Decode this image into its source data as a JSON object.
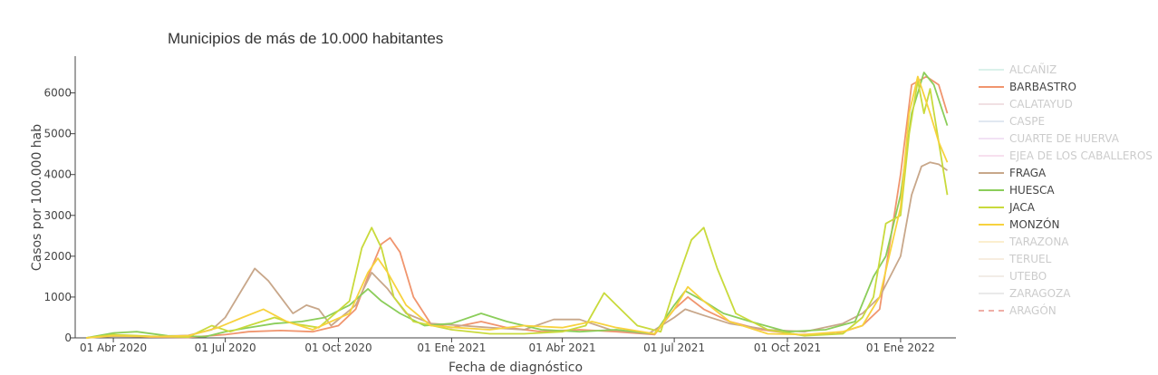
{
  "chart_data": {
    "type": "line",
    "title": "Municipios de más de 10.000 habitantes",
    "xlabel": "Fecha de diagnóstico",
    "ylabel": "Casos por 100.000 hab",
    "xlim": [
      "2020-03-01",
      "2022-02-15"
    ],
    "ylim": [
      0,
      6900
    ],
    "yticks": [
      0,
      1000,
      2000,
      3000,
      4000,
      5000,
      6000
    ],
    "xticks": [
      {
        "date": "2020-04-01",
        "label": "01 Abr 2020"
      },
      {
        "date": "2020-07-01",
        "label": "01 Jul 2020"
      },
      {
        "date": "2020-10-01",
        "label": "01 Oct 2020"
      },
      {
        "date": "2021-01-01",
        "label": "01 Ene 2021"
      },
      {
        "date": "2021-04-01",
        "label": "01 Abr 2021"
      },
      {
        "date": "2021-07-01",
        "label": "01 Jul 2021"
      },
      {
        "date": "2021-10-01",
        "label": "01 Oct 2021"
      },
      {
        "date": "2022-01-01",
        "label": "01 Ene 2022"
      }
    ],
    "legend_position": "right",
    "series": [
      {
        "name": "ALCAÑIZ",
        "color": "#b7e4d9",
        "visible": false,
        "dash": "solid",
        "points": []
      },
      {
        "name": "BARBASTRO",
        "color": "#f0956e",
        "visible": true,
        "dash": "solid",
        "points": [
          [
            "2020-03-10",
            0
          ],
          [
            "2020-04-01",
            60
          ],
          [
            "2020-05-01",
            20
          ],
          [
            "2020-06-01",
            10
          ],
          [
            "2020-07-01",
            80
          ],
          [
            "2020-07-20",
            150
          ],
          [
            "2020-08-15",
            180
          ],
          [
            "2020-09-10",
            150
          ],
          [
            "2020-10-01",
            300
          ],
          [
            "2020-10-15",
            700
          ],
          [
            "2020-10-25",
            1500
          ],
          [
            "2020-11-05",
            2300
          ],
          [
            "2020-11-12",
            2450
          ],
          [
            "2020-11-20",
            2100
          ],
          [
            "2020-12-01",
            1000
          ],
          [
            "2020-12-15",
            350
          ],
          [
            "2021-01-01",
            250
          ],
          [
            "2021-01-25",
            400
          ],
          [
            "2021-02-15",
            250
          ],
          [
            "2021-03-15",
            150
          ],
          [
            "2021-04-15",
            200
          ],
          [
            "2021-05-15",
            150
          ],
          [
            "2021-06-15",
            80
          ],
          [
            "2021-07-01",
            700
          ],
          [
            "2021-07-12",
            1000
          ],
          [
            "2021-07-25",
            700
          ],
          [
            "2021-08-15",
            400
          ],
          [
            "2021-09-10",
            200
          ],
          [
            "2021-10-10",
            80
          ],
          [
            "2021-11-10",
            100
          ],
          [
            "2021-12-01",
            300
          ],
          [
            "2021-12-15",
            700
          ],
          [
            "2022-01-01",
            4000
          ],
          [
            "2022-01-10",
            6200
          ],
          [
            "2022-01-22",
            6400
          ],
          [
            "2022-02-01",
            6200
          ],
          [
            "2022-02-08",
            5500
          ]
        ]
      },
      {
        "name": "CALATAYUD",
        "color": "#e4c2c9",
        "visible": false,
        "dash": "solid",
        "points": []
      },
      {
        "name": "CASPE",
        "color": "#c4d3e4",
        "visible": false,
        "dash": "solid",
        "points": []
      },
      {
        "name": "CUARTE DE HUERVA",
        "color": "#e6c6ea",
        "visible": false,
        "dash": "solid",
        "points": []
      },
      {
        "name": "EJEA DE LOS CABALLEROS",
        "color": "#f0c2de",
        "visible": false,
        "dash": "solid",
        "points": []
      },
      {
        "name": "FRAGA",
        "color": "#c8a78a",
        "visible": true,
        "dash": "solid",
        "points": [
          [
            "2020-03-10",
            0
          ],
          [
            "2020-04-01",
            40
          ],
          [
            "2020-05-01",
            30
          ],
          [
            "2020-06-01",
            60
          ],
          [
            "2020-06-20",
            200
          ],
          [
            "2020-07-01",
            500
          ],
          [
            "2020-07-15",
            1200
          ],
          [
            "2020-07-25",
            1700
          ],
          [
            "2020-08-05",
            1400
          ],
          [
            "2020-08-15",
            1000
          ],
          [
            "2020-08-25",
            600
          ],
          [
            "2020-09-05",
            800
          ],
          [
            "2020-09-15",
            700
          ],
          [
            "2020-09-25",
            300
          ],
          [
            "2020-10-15",
            800
          ],
          [
            "2020-10-28",
            1600
          ],
          [
            "2020-11-10",
            1200
          ],
          [
            "2020-11-25",
            600
          ],
          [
            "2020-12-15",
            350
          ],
          [
            "2021-01-10",
            300
          ],
          [
            "2021-02-01",
            250
          ],
          [
            "2021-03-01",
            200
          ],
          [
            "2021-03-25",
            450
          ],
          [
            "2021-04-15",
            450
          ],
          [
            "2021-05-10",
            200
          ],
          [
            "2021-06-10",
            100
          ],
          [
            "2021-07-01",
            500
          ],
          [
            "2021-07-10",
            700
          ],
          [
            "2021-07-25",
            550
          ],
          [
            "2021-08-15",
            350
          ],
          [
            "2021-09-15",
            200
          ],
          [
            "2021-10-15",
            150
          ],
          [
            "2021-11-15",
            350
          ],
          [
            "2021-12-01",
            600
          ],
          [
            "2021-12-15",
            1000
          ],
          [
            "2022-01-01",
            2000
          ],
          [
            "2022-01-10",
            3500
          ],
          [
            "2022-01-18",
            4200
          ],
          [
            "2022-01-25",
            4300
          ],
          [
            "2022-02-01",
            4250
          ],
          [
            "2022-02-08",
            4100
          ]
        ]
      },
      {
        "name": "HUESCA",
        "color": "#8bcd5a",
        "visible": true,
        "dash": "solid",
        "points": [
          [
            "2020-03-10",
            0
          ],
          [
            "2020-04-01",
            120
          ],
          [
            "2020-04-20",
            150
          ],
          [
            "2020-05-15",
            50
          ],
          [
            "2020-06-15",
            30
          ],
          [
            "2020-07-01",
            150
          ],
          [
            "2020-07-20",
            250
          ],
          [
            "2020-08-10",
            350
          ],
          [
            "2020-09-01",
            400
          ],
          [
            "2020-09-20",
            500
          ],
          [
            "2020-10-10",
            800
          ],
          [
            "2020-10-25",
            1200
          ],
          [
            "2020-11-05",
            900
          ],
          [
            "2020-11-20",
            600
          ],
          [
            "2020-12-10",
            300
          ],
          [
            "2021-01-01",
            350
          ],
          [
            "2021-01-25",
            600
          ],
          [
            "2021-02-15",
            400
          ],
          [
            "2021-03-15",
            200
          ],
          [
            "2021-04-15",
            150
          ],
          [
            "2021-05-15",
            200
          ],
          [
            "2021-06-15",
            100
          ],
          [
            "2021-07-01",
            800
          ],
          [
            "2021-07-10",
            1150
          ],
          [
            "2021-07-25",
            900
          ],
          [
            "2021-08-10",
            600
          ],
          [
            "2021-09-01",
            400
          ],
          [
            "2021-10-01",
            150
          ],
          [
            "2021-11-01",
            200
          ],
          [
            "2021-11-25",
            400
          ],
          [
            "2021-12-10",
            1500
          ],
          [
            "2021-12-20",
            2000
          ],
          [
            "2022-01-01",
            3500
          ],
          [
            "2022-01-10",
            5500
          ],
          [
            "2022-01-20",
            6500
          ],
          [
            "2022-01-28",
            6200
          ],
          [
            "2022-02-08",
            5200
          ]
        ]
      },
      {
        "name": "JACA",
        "color": "#c9da3c",
        "visible": true,
        "dash": "solid",
        "points": [
          [
            "2020-03-10",
            0
          ],
          [
            "2020-04-01",
            80
          ],
          [
            "2020-05-01",
            40
          ],
          [
            "2020-06-01",
            20
          ],
          [
            "2020-06-20",
            300
          ],
          [
            "2020-07-05",
            150
          ],
          [
            "2020-07-20",
            300
          ],
          [
            "2020-08-10",
            500
          ],
          [
            "2020-08-25",
            350
          ],
          [
            "2020-09-15",
            250
          ],
          [
            "2020-10-10",
            900
          ],
          [
            "2020-10-20",
            2200
          ],
          [
            "2020-10-28",
            2700
          ],
          [
            "2020-11-05",
            2200
          ],
          [
            "2020-11-15",
            1000
          ],
          [
            "2020-12-01",
            400
          ],
          [
            "2021-01-01",
            200
          ],
          [
            "2021-02-01",
            100
          ],
          [
            "2021-03-01",
            100
          ],
          [
            "2021-04-01",
            150
          ],
          [
            "2021-04-20",
            300
          ],
          [
            "2021-05-05",
            1100
          ],
          [
            "2021-05-15",
            800
          ],
          [
            "2021-06-01",
            300
          ],
          [
            "2021-06-20",
            150
          ],
          [
            "2021-07-01",
            1200
          ],
          [
            "2021-07-15",
            2400
          ],
          [
            "2021-07-25",
            2700
          ],
          [
            "2021-08-05",
            1700
          ],
          [
            "2021-08-20",
            600
          ],
          [
            "2021-09-15",
            200
          ],
          [
            "2021-10-15",
            50
          ],
          [
            "2021-11-15",
            100
          ],
          [
            "2021-12-01",
            500
          ],
          [
            "2021-12-10",
            1000
          ],
          [
            "2021-12-20",
            2800
          ],
          [
            "2022-01-01",
            3000
          ],
          [
            "2022-01-08",
            5000
          ],
          [
            "2022-01-15",
            6300
          ],
          [
            "2022-01-20",
            5500
          ],
          [
            "2022-01-25",
            6100
          ],
          [
            "2022-02-01",
            4800
          ],
          [
            "2022-02-08",
            3500
          ]
        ]
      },
      {
        "name": "MONZÓN",
        "color": "#f7d23e",
        "visible": true,
        "dash": "solid",
        "points": [
          [
            "2020-03-10",
            0
          ],
          [
            "2020-04-01",
            50
          ],
          [
            "2020-05-01",
            30
          ],
          [
            "2020-06-01",
            50
          ],
          [
            "2020-06-25",
            250
          ],
          [
            "2020-07-15",
            500
          ],
          [
            "2020-08-01",
            700
          ],
          [
            "2020-08-20",
            400
          ],
          [
            "2020-09-10",
            200
          ],
          [
            "2020-10-10",
            600
          ],
          [
            "2020-10-25",
            1600
          ],
          [
            "2020-11-02",
            1950
          ],
          [
            "2020-11-10",
            1600
          ],
          [
            "2020-11-25",
            800
          ],
          [
            "2020-12-15",
            300
          ],
          [
            "2021-01-05",
            250
          ],
          [
            "2021-02-01",
            200
          ],
          [
            "2021-03-01",
            300
          ],
          [
            "2021-04-01",
            250
          ],
          [
            "2021-04-25",
            400
          ],
          [
            "2021-05-15",
            250
          ],
          [
            "2021-06-15",
            100
          ],
          [
            "2021-07-01",
            700
          ],
          [
            "2021-07-12",
            1250
          ],
          [
            "2021-07-25",
            900
          ],
          [
            "2021-08-15",
            400
          ],
          [
            "2021-09-15",
            100
          ],
          [
            "2021-10-15",
            80
          ],
          [
            "2021-11-15",
            150
          ],
          [
            "2021-12-01",
            300
          ],
          [
            "2021-12-15",
            1000
          ],
          [
            "2022-01-01",
            3200
          ],
          [
            "2022-01-08",
            5500
          ],
          [
            "2022-01-15",
            6400
          ],
          [
            "2022-01-25",
            5500
          ],
          [
            "2022-02-01",
            4800
          ],
          [
            "2022-02-08",
            4300
          ]
        ]
      },
      {
        "name": "TARAZONA",
        "color": "#f8e0a0",
        "visible": false,
        "dash": "solid",
        "points": []
      },
      {
        "name": "TERUEL",
        "color": "#f0dcc0",
        "visible": false,
        "dash": "solid",
        "points": []
      },
      {
        "name": "UTEBO",
        "color": "#e6ddd0",
        "visible": false,
        "dash": "solid",
        "points": []
      },
      {
        "name": "ZARAGOZA",
        "color": "#d6d6d6",
        "visible": false,
        "dash": "solid",
        "points": []
      },
      {
        "name": "ARAGÓN",
        "color": "#e06050",
        "visible": false,
        "dash": "dash",
        "points": []
      }
    ]
  }
}
